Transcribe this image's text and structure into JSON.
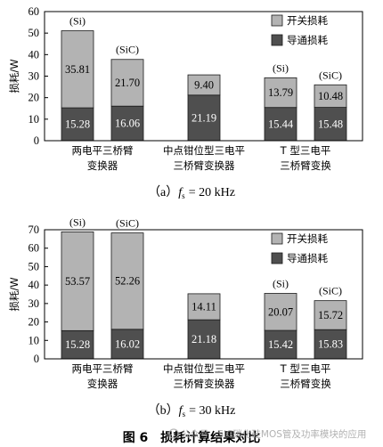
{
  "figure_caption": "图 6　损耗计算结果对比",
  "watermark": "公众号 · SiC碳化硅MOS管及功率模块的应用",
  "chart_data": [
    {
      "type": "bar",
      "stacked": true,
      "caption": {
        "label": "（a）",
        "variable": "f",
        "subscript": "s",
        "value": "= 20 kHz"
      },
      "ylabel": "损耗/W",
      "ylim": [
        0,
        60
      ],
      "yticks": [
        0,
        10,
        20,
        30,
        40,
        50,
        60
      ],
      "grid": false,
      "legend": "top-right",
      "series": [
        {
          "name": "开关损耗",
          "color": "#b3b3b3"
        },
        {
          "name": "导通损耗",
          "color": "#4f4f4f"
        }
      ],
      "groups": [
        {
          "label": [
            "两电平三桥臂",
            "变换器"
          ],
          "bars": [
            {
              "tag": "(Si)",
              "values": [
                35.81,
                15.28
              ]
            },
            {
              "tag": "(SiC)",
              "values": [
                21.7,
                16.06
              ]
            }
          ]
        },
        {
          "label": [
            "中点钳位型三电平",
            "三桥臂变换器"
          ],
          "bars": [
            {
              "values": [
                9.4,
                21.19
              ]
            }
          ]
        },
        {
          "label": [
            "T 型三电平",
            "三桥臂变换"
          ],
          "bars": [
            {
              "tag": "(Si)",
              "values": [
                13.79,
                15.44
              ]
            },
            {
              "tag": "(SiC)",
              "values": [
                10.48,
                15.48
              ]
            }
          ]
        }
      ]
    },
    {
      "type": "bar",
      "stacked": true,
      "caption": {
        "label": "（b）",
        "variable": "f",
        "subscript": "s",
        "value": "= 30 kHz"
      },
      "ylabel": "损耗/W",
      "ylim": [
        0,
        70
      ],
      "yticks": [
        0,
        10,
        20,
        30,
        40,
        50,
        60,
        70
      ],
      "grid": false,
      "legend": "top-right",
      "series": [
        {
          "name": "开关损耗",
          "color": "#b3b3b3"
        },
        {
          "name": "导通损耗",
          "color": "#4f4f4f"
        }
      ],
      "groups": [
        {
          "label": [
            "两电平三桥臂",
            "变换器"
          ],
          "bars": [
            {
              "tag": "(Si)",
              "values": [
                53.57,
                15.28
              ]
            },
            {
              "tag": "(SiC)",
              "values": [
                52.26,
                16.02
              ]
            }
          ]
        },
        {
          "label": [
            "中点钳位型三电平",
            "三桥臂变换器"
          ],
          "bars": [
            {
              "values": [
                14.11,
                21.18
              ]
            }
          ]
        },
        {
          "label": [
            "T 型三电平",
            "三桥臂变换"
          ],
          "bars": [
            {
              "tag": "(Si)",
              "values": [
                20.07,
                15.42
              ]
            },
            {
              "tag": "(SiC)",
              "values": [
                15.72,
                15.83
              ]
            }
          ]
        }
      ]
    }
  ]
}
